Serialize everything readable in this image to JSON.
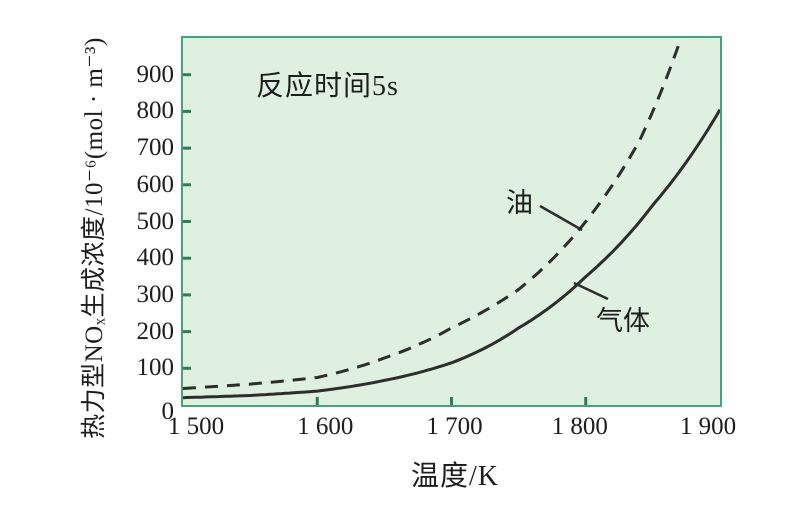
{
  "figure": {
    "background": "#ffffff",
    "plot_background": "#dff0e0",
    "border_color": "#42a578",
    "tick_color": "#2f7c55",
    "curve_color": "#2d2d2d",
    "text_color": "#1d1d1d"
  },
  "chart_data": {
    "type": "line",
    "title": "",
    "annotation": "反应时间5s",
    "xlabel": "温度/K",
    "ylabel": "热力型NOₓ生成浓度/10⁻⁶(mol · m⁻³)",
    "xlim": [
      1500,
      1900
    ],
    "ylim": [
      0,
      1000
    ],
    "grid": false,
    "legend_position": "inline-curve-labels",
    "x_ticks": [
      {
        "value": 1500,
        "label": "1 500"
      },
      {
        "value": 1600,
        "label": "1 600"
      },
      {
        "value": 1700,
        "label": "1 700"
      },
      {
        "value": 1800,
        "label": "1 800"
      },
      {
        "value": 1900,
        "label": "1 900"
      }
    ],
    "y_ticks": [
      {
        "value": 0,
        "label": "0"
      },
      {
        "value": 100,
        "label": "100"
      },
      {
        "value": 200,
        "label": "200"
      },
      {
        "value": 300,
        "label": "300"
      },
      {
        "value": 400,
        "label": "400"
      },
      {
        "value": 500,
        "label": "500"
      },
      {
        "value": 600,
        "label": "600"
      },
      {
        "value": 700,
        "label": "700"
      },
      {
        "value": 800,
        "label": "800"
      },
      {
        "value": 900,
        "label": "900"
      }
    ],
    "series": [
      {
        "name": "油",
        "line_style": "dashed",
        "points": [
          [
            1500,
            45
          ],
          [
            1550,
            57
          ],
          [
            1600,
            75
          ],
          [
            1650,
            128
          ],
          [
            1700,
            210
          ],
          [
            1750,
            315
          ],
          [
            1800,
            500
          ],
          [
            1840,
            720
          ],
          [
            1871,
            1000
          ]
        ]
      },
      {
        "name": "气体",
        "line_style": "solid",
        "points": [
          [
            1500,
            20
          ],
          [
            1550,
            26
          ],
          [
            1600,
            38
          ],
          [
            1650,
            67
          ],
          [
            1700,
            115
          ],
          [
            1750,
            210
          ],
          [
            1800,
            350
          ],
          [
            1850,
            545
          ],
          [
            1900,
            805
          ]
        ]
      }
    ]
  }
}
